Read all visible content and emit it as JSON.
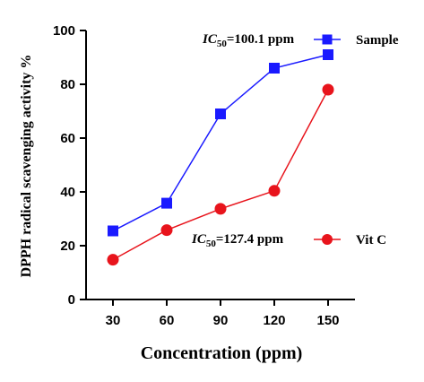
{
  "chart_data": {
    "type": "line",
    "xlabel": "Concentration (ppm)",
    "ylabel": "DPPH radical scavenging activity %",
    "categories": [
      30,
      60,
      90,
      120,
      150
    ],
    "ylim": [
      0,
      100
    ],
    "yticks": [
      0,
      20,
      40,
      60,
      80,
      100
    ],
    "grid": false,
    "legend_position": "right",
    "series": [
      {
        "name": "Sample",
        "values": [
          25.5,
          35.8,
          69.0,
          86.0,
          91.0
        ],
        "color": "#1a1aff",
        "marker": "square",
        "ic50_prefix": "IC",
        "ic50_sub": "50",
        "ic50_value": "=100.1 ppm"
      },
      {
        "name": "Vit C",
        "values": [
          14.8,
          25.8,
          33.7,
          40.4,
          78.0
        ],
        "color": "#e8141c",
        "marker": "circle",
        "ic50_prefix": "IC",
        "ic50_sub": "50",
        "ic50_value": "=127.4 ppm"
      }
    ]
  }
}
